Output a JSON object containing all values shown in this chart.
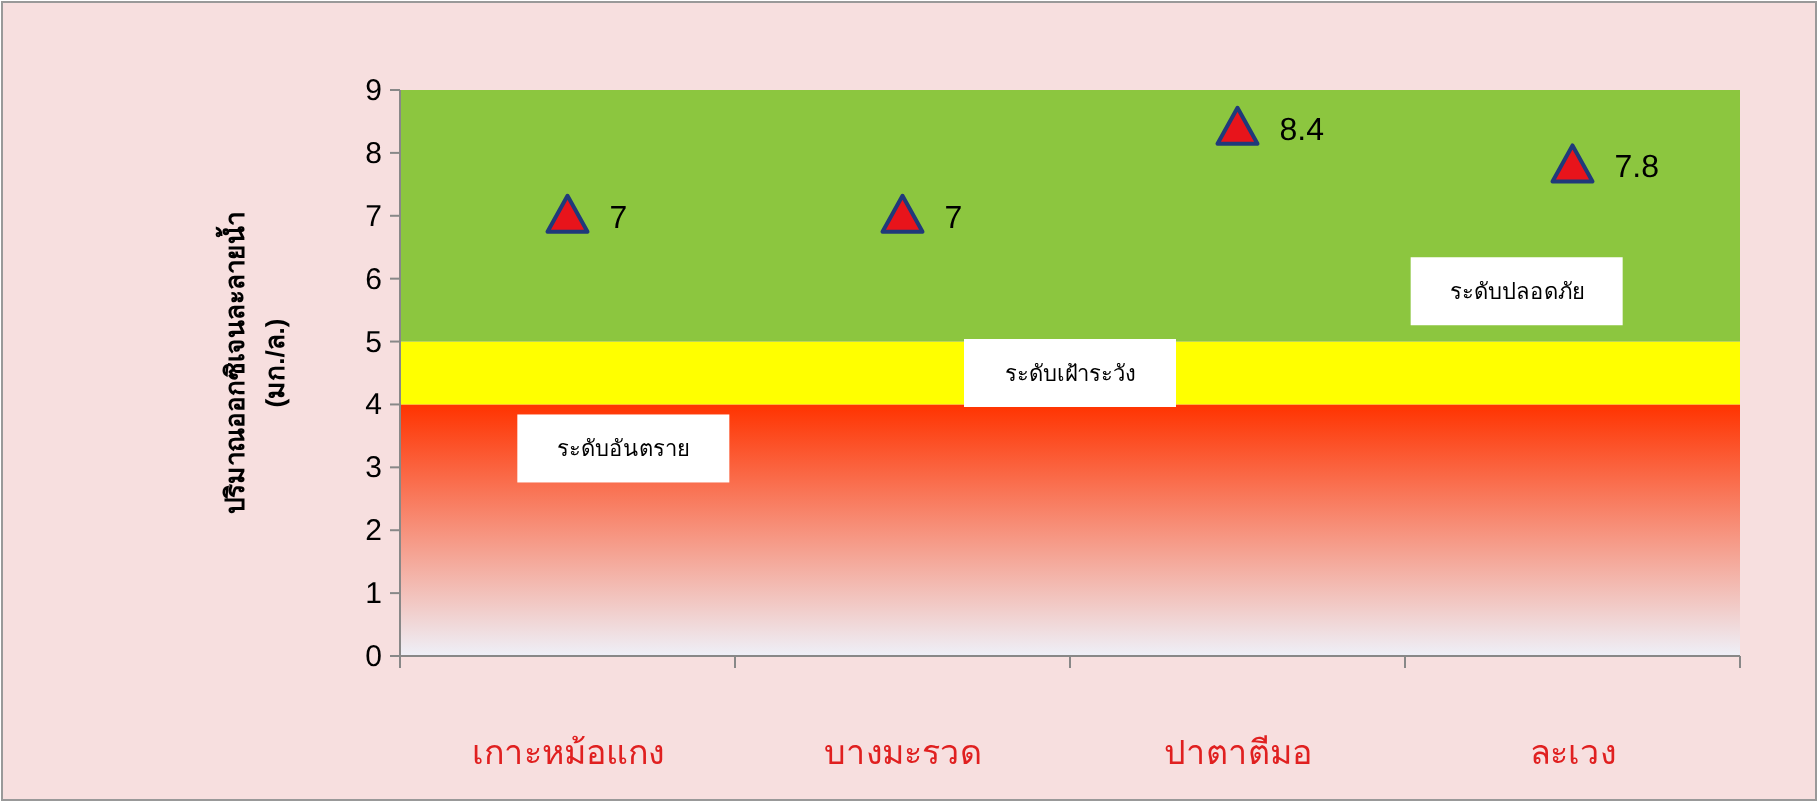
{
  "chart_data": {
    "type": "scatter",
    "ylabel": "ปริมาณออกซิเจนละลายน้ำ\n(มก./ล.)",
    "categories": [
      "เกาะหม้อแกง",
      "บางมะรวด",
      "ปาตาตีมอ",
      "ละเวง"
    ],
    "series": [
      {
        "color": "#e8141b",
        "values": [
          7,
          7,
          8.4,
          7.8
        ]
      }
    ],
    "marker": "triangle",
    "data_labels": true,
    "ylim": [
      0,
      9
    ],
    "yticks": [
      0,
      1,
      2,
      3,
      4,
      5,
      6,
      7,
      8,
      9
    ],
    "bands": [
      {
        "axis": "y",
        "from": 0,
        "to": 4,
        "label": "ระดับอันตราย",
        "color": "#ff3300"
      },
      {
        "axis": "y",
        "from": 4,
        "to": 5,
        "label": "ระดับเฝ้าระวัง",
        "color": "#ffff00"
      },
      {
        "axis": "y",
        "from": 5,
        "to": 9,
        "label": "ระดับปลอดภัย",
        "color": "#8cc63f"
      }
    ]
  }
}
